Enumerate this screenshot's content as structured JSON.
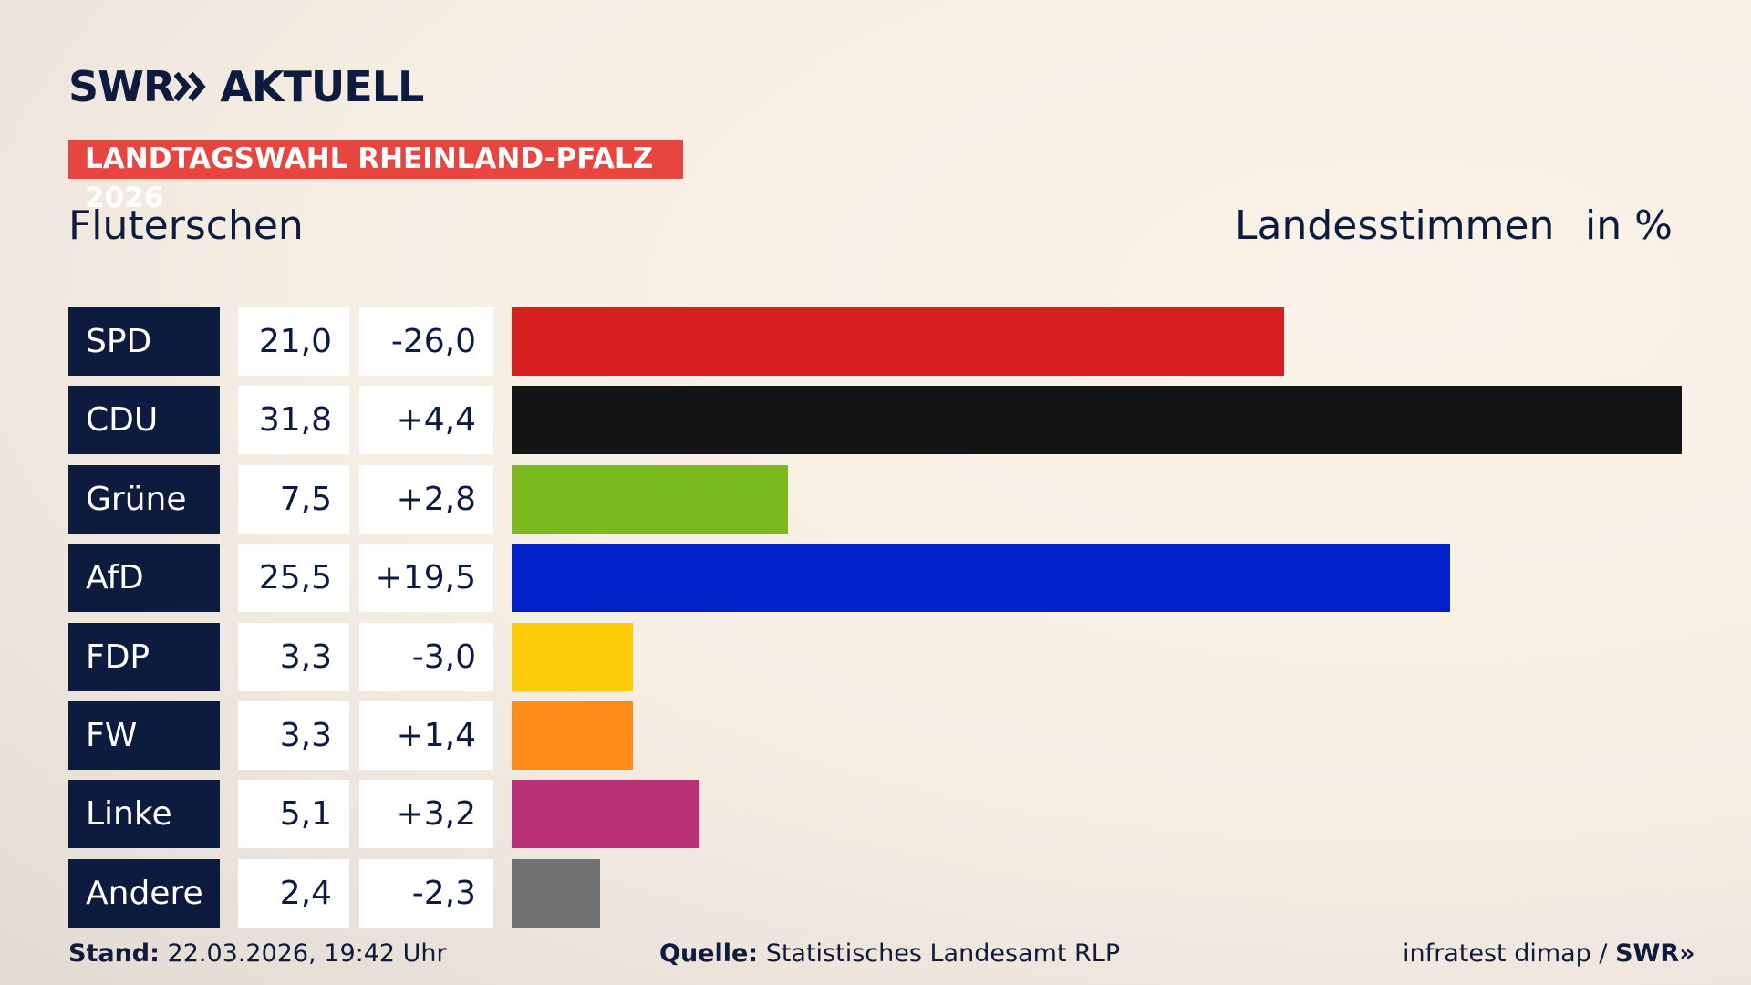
{
  "brand": {
    "name": "SWR",
    "product": "AKTUELL"
  },
  "chart_data": {
    "type": "bar",
    "subtitle": "LANDTAGSWAHL RHEINLAND-PFALZ 2026",
    "title": "Fluterschen",
    "measure": "Landesstimmen",
    "unit": "in %",
    "categories": [
      "SPD",
      "CDU",
      "Grüne",
      "AfD",
      "FDP",
      "FW",
      "Linke",
      "Andere"
    ],
    "values": [
      21.0,
      31.8,
      7.5,
      25.5,
      3.3,
      3.3,
      5.1,
      2.4
    ],
    "value_labels": [
      "21,0",
      "31,8",
      "7,5",
      "25,5",
      "3,3",
      "3,3",
      "5,1",
      "2,4"
    ],
    "changes": [
      -26.0,
      4.4,
      2.8,
      19.5,
      -3.0,
      1.4,
      3.2,
      -2.3
    ],
    "change_labels": [
      "-26,0",
      "+4,4",
      "+2,8",
      "+19,5",
      "-3,0",
      "+1,4",
      "+3,2",
      "-2,3"
    ],
    "colors": [
      "#d71f1f",
      "#141414",
      "#7aba1e",
      "#0020c8",
      "#ffcc0a",
      "#ff8c19",
      "#bb3177",
      "#727272"
    ]
  },
  "footer": {
    "stand_label": "Stand:",
    "stand": "22.03.2026, 19:42 Uhr",
    "source_label": "Quelle:",
    "source": "Statistisches Landesamt RLP",
    "credit": "infratest dimap /",
    "credit_brand": "SWR"
  }
}
